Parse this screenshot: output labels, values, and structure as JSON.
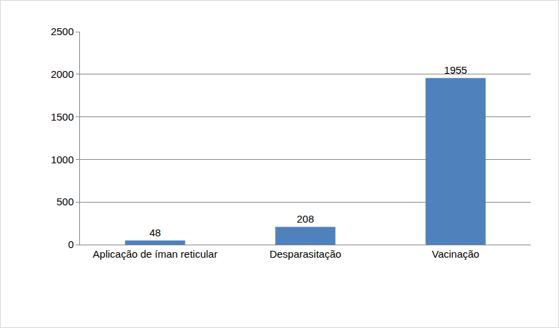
{
  "chart_data": {
    "type": "bar",
    "categories": [
      "Aplicação de íman reticular",
      "Desparasitação",
      "Vacinação"
    ],
    "values": [
      48,
      208,
      1955
    ],
    "color": "#4f81bd",
    "ylim": [
      0,
      2500
    ],
    "yticks": [
      0,
      500,
      1000,
      1500,
      2000,
      2500
    ],
    "grid": true,
    "data_labels": true
  }
}
